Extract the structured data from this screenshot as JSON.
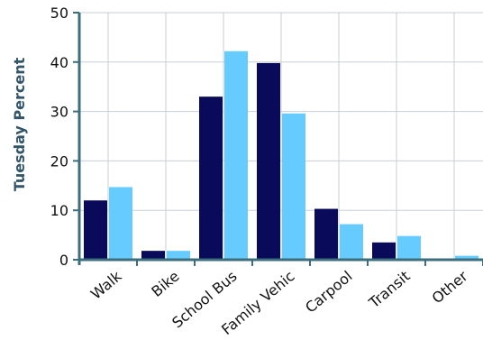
{
  "colors": {
    "series1": "#0a0a5a",
    "series2": "#66ccff",
    "axis": "#3d6e7e",
    "grid": "#c8cfd6",
    "text": "#111111",
    "ylabel": "#33556a"
  },
  "chart_data": {
    "type": "bar",
    "ylabel": "Tuesday Percent",
    "ylim": [
      0,
      50
    ],
    "yticks": [
      0,
      10,
      20,
      30,
      40,
      50
    ],
    "grid": true,
    "categories": [
      "Walk",
      "Bike",
      "School Bus",
      "Family Vehicle",
      "Carpool",
      "Transit",
      "Other"
    ],
    "category_labels_shown": [
      "Walk",
      "Bike",
      "School Bus",
      "Family Vehic",
      "Carpool",
      "Transit",
      "Other"
    ],
    "series": [
      {
        "values": [
          12,
          1.8,
          33,
          39.8,
          10.3,
          3.5,
          0.2
        ]
      },
      {
        "values": [
          14.7,
          1.8,
          42.2,
          29.6,
          7.2,
          4.8,
          0.8
        ]
      }
    ]
  }
}
